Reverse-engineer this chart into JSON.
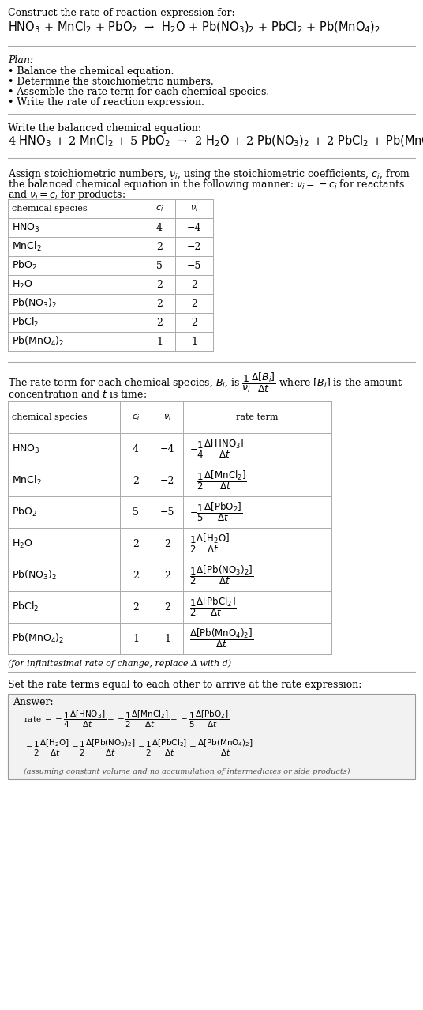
{
  "bg_color": "#ffffff",
  "text_color": "#000000",
  "title_line1": "Construct the rate of reaction expression for:",
  "plan_header": "Plan:",
  "plan_items": [
    "• Balance the chemical equation.",
    "• Determine the stoichiometric numbers.",
    "• Assemble the rate term for each chemical species.",
    "• Write the rate of reaction expression."
  ],
  "balanced_header": "Write the balanced chemical equation:",
  "stoich_header": "Assign stoichiometric numbers, $\\mathit{\\nu}_i$, using the stoichiometric coefficients, $\\mathit{c}_i$, from",
  "stoich_line2": "the balanced chemical equation in the following manner: $\\mathit{\\nu}_i = -\\mathit{c}_i$ for reactants",
  "stoich_line3": "and $\\mathit{\\nu}_i = \\mathit{c}_i$ for products:",
  "table1_species_labels": [
    "$\\mathrm{HNO_3}$",
    "$\\mathrm{MnCl_2}$",
    "$\\mathrm{PbO_2}$",
    "$\\mathrm{H_2O}$",
    "$\\mathrm{Pb(NO_3)_2}$",
    "$\\mathrm{PbCl_2}$",
    "$\\mathrm{Pb(MnO_4)_2}$"
  ],
  "table1_ci": [
    "4",
    "2",
    "5",
    "2",
    "2",
    "2",
    "1"
  ],
  "table1_vi": [
    "−4",
    "−2",
    "−5",
    "2",
    "2",
    "2",
    "1"
  ],
  "rate_text1": "The rate term for each chemical species, $B_i$, is $\\dfrac{1}{\\nu_i}\\dfrac{\\Delta[B_i]}{\\Delta t}$ where $[B_i]$ is the amount",
  "rate_text2": "concentration and $t$ is time:",
  "table2_species_labels": [
    "$\\mathrm{HNO_3}$",
    "$\\mathrm{MnCl_2}$",
    "$\\mathrm{PbO_2}$",
    "$\\mathrm{H_2O}$",
    "$\\mathrm{Pb(NO_3)_2}$",
    "$\\mathrm{PbCl_2}$",
    "$\\mathrm{Pb(MnO_4)_2}$"
  ],
  "table2_ci": [
    "4",
    "2",
    "5",
    "2",
    "2",
    "2",
    "1"
  ],
  "table2_vi": [
    "−4",
    "−2",
    "−5",
    "2",
    "2",
    "2",
    "1"
  ],
  "table2_rate_terms": [
    "$-\\dfrac{1}{4}\\dfrac{\\Delta[\\mathrm{HNO_3}]}{\\Delta t}$",
    "$-\\dfrac{1}{2}\\dfrac{\\Delta[\\mathrm{MnCl_2}]}{\\Delta t}$",
    "$-\\dfrac{1}{5}\\dfrac{\\Delta[\\mathrm{PbO_2}]}{\\Delta t}$",
    "$\\dfrac{1}{2}\\dfrac{\\Delta[\\mathrm{H_2O}]}{\\Delta t}$",
    "$\\dfrac{1}{2}\\dfrac{\\Delta[\\mathrm{Pb(NO_3)_2}]}{\\Delta t}$",
    "$\\dfrac{1}{2}\\dfrac{\\Delta[\\mathrm{PbCl_2}]}{\\Delta t}$",
    "$\\dfrac{\\Delta[\\mathrm{Pb(MnO_4)_2}]}{\\Delta t}$"
  ],
  "infinitesimal_note": "(for infinitesimal rate of change, replace Δ with d)",
  "rate_expr_header": "Set the rate terms equal to each other to arrive at the rate expression:",
  "answer_label": "Answer:",
  "rate_answer_line1": "rate $= -\\dfrac{1}{4}\\dfrac{\\Delta[\\mathrm{HNO_3}]}{\\Delta t} = -\\dfrac{1}{2}\\dfrac{\\Delta[\\mathrm{MnCl_2}]}{\\Delta t} = -\\dfrac{1}{5}\\dfrac{\\Delta[\\mathrm{PbO_2}]}{\\Delta t}$",
  "rate_answer_line2": "$= \\dfrac{1}{2}\\dfrac{\\Delta[\\mathrm{H_2O}]}{\\Delta t} = \\dfrac{1}{2}\\dfrac{\\Delta[\\mathrm{Pb(NO_3)_2}]}{\\Delta t} = \\dfrac{1}{2}\\dfrac{\\Delta[\\mathrm{PbCl_2}]}{\\Delta t} = \\dfrac{\\Delta[\\mathrm{Pb(MnO_4)_2}]}{\\Delta t}$",
  "final_note": "(assuming constant volume and no accumulation of intermediates or side products)",
  "line_color": "#aaaaaa",
  "table_line_color": "#aaaaaa"
}
